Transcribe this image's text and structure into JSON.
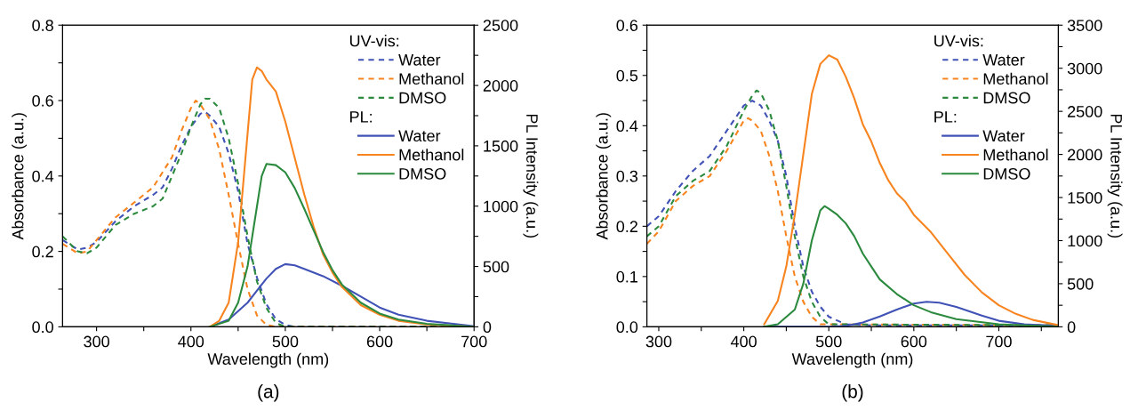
{
  "chart_data": [
    {
      "type": "line",
      "title": "(a)",
      "xlabel": "Wavelength (nm)",
      "ylabel": "Absorbance (a.u.)",
      "y2label": "PL Intensity (a.u.)",
      "legend_title": [
        "UV-vis:",
        "PL:"
      ],
      "legend": "top right",
      "grid": false,
      "xlim": [
        264,
        700
      ],
      "xticks": [
        300,
        {
          "value": 350,
          "label": null
        },
        400,
        {
          "value": 450,
          "label": null
        },
        500,
        {
          "value": 550,
          "label": null
        },
        600,
        {
          "value": 650,
          "label": null
        },
        700
      ],
      "ylim": [
        0,
        0.8
      ],
      "yticks": [
        {
          "value": 0,
          "label": "0.0"
        },
        {
          "value": 0.1,
          "label": null
        },
        0.2,
        {
          "value": 0.3,
          "label": null
        },
        0.4,
        {
          "value": 0.5,
          "label": null
        },
        0.6,
        {
          "value": 0.7,
          "label": null
        },
        0.8
      ],
      "y2lim": [
        0,
        2500
      ],
      "y2ticks": [
        0,
        {
          "value": 250,
          "label": null
        },
        500,
        {
          "value": 750,
          "label": null
        },
        1000,
        {
          "value": 1250,
          "label": null
        },
        1500,
        {
          "value": 1750,
          "label": null
        },
        2000,
        {
          "value": 2250,
          "label": null
        },
        2500
      ],
      "series": [
        {
          "name": "Water",
          "color": "#4052b5",
          "line_style": "dashed",
          "x": [
            264,
            280,
            290,
            300,
            320,
            340,
            360,
            370,
            380,
            390,
            400,
            410,
            415,
            420,
            430,
            440,
            450,
            460,
            470,
            480,
            490,
            500,
            510,
            700
          ],
          "values": [
            0.23,
            0.205,
            0.21,
            0.225,
            0.28,
            0.32,
            0.35,
            0.37,
            0.42,
            0.48,
            0.53,
            0.565,
            0.57,
            0.56,
            0.53,
            0.46,
            0.36,
            0.22,
            0.13,
            0.06,
            0.02,
            0.005,
            0,
            0
          ]
        },
        {
          "name": "Methanol",
          "color": "#f7841f",
          "line_style": "dashed",
          "x": [
            264,
            280,
            290,
            300,
            320,
            340,
            360,
            380,
            390,
            400,
            405,
            410,
            420,
            430,
            440,
            450,
            460,
            470,
            480,
            490,
            700
          ],
          "values": [
            0.22,
            0.195,
            0.2,
            0.23,
            0.29,
            0.33,
            0.37,
            0.45,
            0.52,
            0.58,
            0.6,
            0.59,
            0.55,
            0.47,
            0.35,
            0.22,
            0.1,
            0.03,
            0.005,
            0,
            0
          ]
        },
        {
          "name": "DMSO",
          "color": "#2b8a3e",
          "line_style": "dashed",
          "x": [
            264,
            280,
            290,
            300,
            320,
            340,
            360,
            370,
            380,
            390,
            400,
            410,
            415,
            420,
            430,
            440,
            450,
            460,
            470,
            480,
            490,
            500,
            700
          ],
          "values": [
            0.24,
            0.2,
            0.195,
            0.21,
            0.27,
            0.3,
            0.32,
            0.34,
            0.4,
            0.46,
            0.53,
            0.59,
            0.605,
            0.605,
            0.58,
            0.5,
            0.38,
            0.24,
            0.12,
            0.05,
            0.01,
            0,
            0
          ]
        },
        {
          "name": "Water",
          "color": "#4052b5",
          "line_style": "solid",
          "axis": "y2",
          "x": [
            420,
            440,
            460,
            470,
            480,
            490,
            500,
            510,
            520,
            540,
            560,
            580,
            600,
            620,
            650,
            700
          ],
          "values": [
            0,
            60,
            200,
            300,
            400,
            480,
            520,
            510,
            480,
            420,
            340,
            250,
            160,
            100,
            50,
            5
          ]
        },
        {
          "name": "Methanol",
          "color": "#f7841f",
          "line_style": "solid",
          "axis": "y2",
          "x": [
            420,
            430,
            440,
            450,
            460,
            465,
            470,
            475,
            480,
            490,
            500,
            510,
            520,
            530,
            540,
            550,
            560,
            580,
            600,
            620,
            650,
            700
          ],
          "values": [
            0,
            50,
            200,
            700,
            1600,
            2050,
            2150,
            2120,
            2050,
            1950,
            1700,
            1400,
            1100,
            830,
            600,
            450,
            330,
            180,
            100,
            50,
            20,
            0
          ]
        },
        {
          "name": "DMSO",
          "color": "#2b8a3e",
          "line_style": "solid",
          "axis": "y2",
          "x": [
            420,
            440,
            450,
            460,
            470,
            475,
            480,
            490,
            500,
            510,
            520,
            530,
            540,
            550,
            560,
            580,
            600,
            620,
            650,
            700
          ],
          "values": [
            0,
            50,
            200,
            500,
            1000,
            1250,
            1350,
            1340,
            1280,
            1150,
            980,
            800,
            620,
            470,
            350,
            200,
            110,
            60,
            25,
            0
          ]
        }
      ]
    },
    {
      "type": "line",
      "title": "(b)",
      "xlabel": "Wavelength (nm)",
      "ylabel": "Absorbance (a.u.)",
      "y2label": "PL Intensity (a.u.)",
      "legend_title": [
        "UV-vis:",
        "PL:"
      ],
      "legend": "top right",
      "grid": false,
      "xlim": [
        286,
        770
      ],
      "xticks": [
        300,
        {
          "value": 350,
          "label": null
        },
        400,
        {
          "value": 450,
          "label": null
        },
        500,
        {
          "value": 550,
          "label": null
        },
        600,
        {
          "value": 650,
          "label": null
        },
        700,
        {
          "value": 750,
          "label": null
        }
      ],
      "ylim": [
        0,
        0.6
      ],
      "yticks": [
        {
          "value": 0,
          "label": "0.0"
        },
        {
          "value": 0.05,
          "label": null
        },
        0.1,
        {
          "value": 0.15,
          "label": null
        },
        0.2,
        {
          "value": 0.25,
          "label": null
        },
        0.3,
        {
          "value": 0.35,
          "label": null
        },
        0.4,
        {
          "value": 0.45,
          "label": null
        },
        0.5,
        {
          "value": 0.55,
          "label": null
        },
        0.6
      ],
      "y2lim": [
        0,
        3500
      ],
      "y2ticks": [
        0,
        {
          "value": 250,
          "label": null
        },
        500,
        {
          "value": 750,
          "label": null
        },
        1000,
        {
          "value": 1250,
          "label": null
        },
        1500,
        {
          "value": 1750,
          "label": null
        },
        2000,
        {
          "value": 2250,
          "label": null
        },
        2500,
        {
          "value": 2750,
          "label": null
        },
        3000,
        {
          "value": 3250,
          "label": null
        },
        3500
      ],
      "series": [
        {
          "name": "Water",
          "color": "#4052b5",
          "line_style": "dashed",
          "x": [
            286,
            300,
            320,
            340,
            360,
            380,
            400,
            410,
            420,
            430,
            440,
            450,
            460,
            470,
            480,
            490,
            500,
            520,
            550,
            770
          ],
          "values": [
            0.2,
            0.22,
            0.27,
            0.31,
            0.34,
            0.39,
            0.44,
            0.45,
            0.44,
            0.41,
            0.37,
            0.3,
            0.2,
            0.12,
            0.07,
            0.04,
            0.02,
            0.005,
            0.003,
            0.003
          ]
        },
        {
          "name": "Methanol",
          "color": "#f7841f",
          "line_style": "dashed",
          "x": [
            286,
            300,
            320,
            340,
            360,
            380,
            400,
            405,
            410,
            420,
            430,
            440,
            450,
            460,
            470,
            480,
            490,
            770
          ],
          "values": [
            0.165,
            0.19,
            0.25,
            0.28,
            0.3,
            0.35,
            0.41,
            0.415,
            0.41,
            0.39,
            0.34,
            0.27,
            0.18,
            0.1,
            0.05,
            0.02,
            0.005,
            0.003
          ]
        },
        {
          "name": "DMSO",
          "color": "#2b8a3e",
          "line_style": "dashed",
          "x": [
            286,
            300,
            320,
            340,
            360,
            380,
            400,
            410,
            415,
            420,
            430,
            440,
            450,
            460,
            470,
            480,
            490,
            500,
            770
          ],
          "values": [
            0.18,
            0.2,
            0.26,
            0.29,
            0.31,
            0.36,
            0.43,
            0.46,
            0.47,
            0.465,
            0.43,
            0.37,
            0.28,
            0.18,
            0.1,
            0.05,
            0.02,
            0.005,
            0.003
          ]
        },
        {
          "name": "Water",
          "color": "#4052b5",
          "line_style": "solid",
          "axis": "y2",
          "x": [
            424,
            500,
            520,
            540,
            560,
            580,
            600,
            615,
            630,
            650,
            680,
            700,
            730,
            770
          ],
          "values": [
            0,
            0,
            10,
            50,
            120,
            200,
            270,
            290,
            280,
            230,
            130,
            70,
            30,
            10
          ]
        },
        {
          "name": "Methanol",
          "color": "#f7841f",
          "line_style": "solid",
          "axis": "y2",
          "x": [
            424,
            440,
            450,
            460,
            470,
            480,
            490,
            500,
            510,
            520,
            530,
            540,
            550,
            560,
            570,
            580,
            590,
            600,
            620,
            640,
            660,
            680,
            700,
            720,
            740,
            770
          ],
          "values": [
            30,
            300,
            700,
            1300,
            2000,
            2700,
            3050,
            3150,
            3100,
            2900,
            2650,
            2350,
            2150,
            1900,
            1700,
            1550,
            1450,
            1300,
            1100,
            850,
            600,
            400,
            250,
            150,
            80,
            20
          ]
        },
        {
          "name": "DMSO",
          "color": "#2b8a3e",
          "line_style": "solid",
          "axis": "y2",
          "x": [
            424,
            440,
            460,
            470,
            480,
            490,
            495,
            500,
            510,
            520,
            530,
            540,
            550,
            560,
            580,
            600,
            620,
            650,
            700,
            770
          ],
          "values": [
            0,
            30,
            200,
            500,
            1000,
            1350,
            1400,
            1370,
            1300,
            1200,
            1050,
            850,
            700,
            550,
            380,
            250,
            170,
            90,
            30,
            0
          ]
        }
      ]
    }
  ]
}
